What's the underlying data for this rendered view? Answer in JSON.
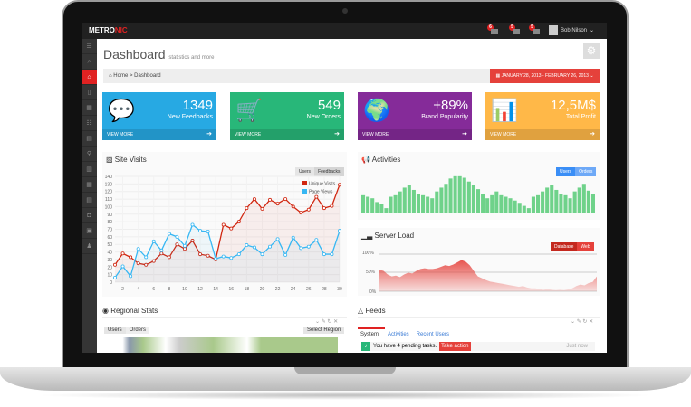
{
  "topbar": {
    "logo_a": "METRO",
    "logo_b": "NIC",
    "notifications": [
      {
        "count": "6",
        "icon": "warning-icon"
      },
      {
        "count": "5",
        "icon": "envelope-icon"
      },
      {
        "count": "5",
        "icon": "tasks-icon"
      }
    ],
    "user": "Bob Nilson"
  },
  "sidebar": {
    "items": [
      "menu-icon",
      "search-icon",
      "home-icon",
      "bookmark-icon",
      "table-icon",
      "list-icon",
      "grid-icon",
      "map-marker-icon",
      "chart-icon",
      "grid-icon",
      "briefcase-icon",
      "camera-icon",
      "calendar-icon",
      "user-icon"
    ],
    "glyphs": [
      "☰",
      "⌕",
      "⌂",
      "▯",
      "▦",
      "☷",
      "▤",
      "⚲",
      "▥",
      "▦",
      "▤",
      "◘",
      "▣",
      "♟"
    ]
  },
  "page": {
    "title": "Dashboard",
    "subtitle": "statistics and more"
  },
  "breadcrumb": {
    "home": "Home",
    "sep": ">",
    "current": "Dashboard",
    "date_range": "JANUARY 28, 2013 - FEBRUARY 26, 2013"
  },
  "tiles": [
    {
      "value": "1349",
      "label": "New Feedbacks",
      "footer": "VIEW MORE",
      "color": "#27a9e3",
      "icon": "comments-icon",
      "glyph": "💬"
    },
    {
      "value": "549",
      "label": "New Orders",
      "footer": "VIEW MORE",
      "color": "#28b779",
      "icon": "shopping-cart-icon",
      "glyph": "🛒"
    },
    {
      "value": "+89%",
      "label": "Brand Popularity",
      "footer": "VIEW MORE",
      "color": "#852b99",
      "icon": "globe-icon",
      "glyph": "🌍"
    },
    {
      "value": "12,5M$",
      "label": "Total Profit",
      "footer": "VIEW MORE",
      "color": "#ffb848",
      "icon": "bar-chart-icon",
      "glyph": "📊"
    }
  ],
  "site_visits": {
    "title": "Site Visits",
    "buttons": [
      "Users",
      "Feedbacks"
    ]
  },
  "activities": {
    "title": "Activities",
    "buttons": [
      "Users",
      "Orders"
    ]
  },
  "server_load": {
    "title": "Server Load",
    "buttons": [
      "Database",
      "Web"
    ]
  },
  "regional": {
    "title": "Regional Stats",
    "buttons": [
      "Users",
      "Orders"
    ],
    "select": "Select Region"
  },
  "feeds": {
    "title": "Feeds",
    "tabs": [
      "System",
      "Activities",
      "Recent Users"
    ],
    "item": "You have 4 pending tasks.",
    "action": "Take action",
    "time": "Just now"
  },
  "chart_data": [
    {
      "type": "line",
      "ylim": [
        0,
        140
      ],
      "yticks": [
        0,
        10,
        20,
        30,
        40,
        50,
        60,
        70,
        80,
        90,
        100,
        110,
        120,
        130,
        140
      ],
      "xticks": [
        2,
        4,
        6,
        8,
        10,
        12,
        14,
        16,
        18,
        20,
        22,
        24,
        26,
        28,
        30
      ],
      "grid": true,
      "legend": "top-right",
      "x": [
        1,
        2,
        3,
        4,
        5,
        6,
        7,
        8,
        9,
        10,
        11,
        12,
        13,
        14,
        15,
        16,
        17,
        18,
        19,
        20,
        21,
        22,
        23,
        24,
        25,
        26,
        27,
        28,
        29,
        30
      ],
      "series": [
        {
          "name": "Unique Visits",
          "color": "#d12610",
          "values": [
            23,
            38,
            33,
            25,
            23,
            28,
            38,
            33,
            50,
            44,
            55,
            37,
            35,
            30,
            76,
            71,
            80,
            98,
            110,
            97,
            109,
            104,
            110,
            100,
            92,
            96,
            113,
            98,
            101,
            129
          ]
        },
        {
          "name": "Page Views",
          "color": "#37b7f3",
          "values": [
            6,
            21,
            8,
            44,
            33,
            54,
            42,
            64,
            60,
            48,
            76,
            68,
            67,
            31,
            34,
            32,
            37,
            49,
            46,
            37,
            47,
            57,
            36,
            59,
            45,
            47,
            56,
            37,
            37,
            68
          ]
        }
      ]
    },
    {
      "type": "bar",
      "color": "#6fd28a",
      "values": [
        48,
        44,
        40,
        30,
        25,
        14,
        44,
        48,
        58,
        68,
        74,
        62,
        52,
        48,
        44,
        40,
        58,
        68,
        78,
        92,
        98,
        98,
        94,
        84,
        74,
        64,
        50,
        40,
        48,
        58,
        48,
        44,
        40,
        34,
        28,
        20,
        14,
        44,
        48,
        58,
        68,
        74,
        62,
        52,
        48,
        40,
        58,
        68,
        78,
        60,
        50
      ]
    },
    {
      "type": "area",
      "color": "#e5413b",
      "ytick_labels": [
        "100%",
        "50%",
        "0%"
      ],
      "values": [
        58,
        55,
        45,
        40,
        42,
        38,
        45,
        50,
        48,
        55,
        60,
        62,
        60,
        60,
        62,
        66,
        70,
        68,
        72,
        78,
        84,
        80,
        70,
        55,
        40,
        35,
        30,
        26,
        24,
        22,
        20,
        18,
        16,
        14,
        12,
        14,
        10,
        8,
        8,
        6,
        4,
        6,
        4,
        3,
        4,
        3,
        5,
        8,
        14,
        18,
        16,
        22,
        25,
        40
      ]
    }
  ]
}
